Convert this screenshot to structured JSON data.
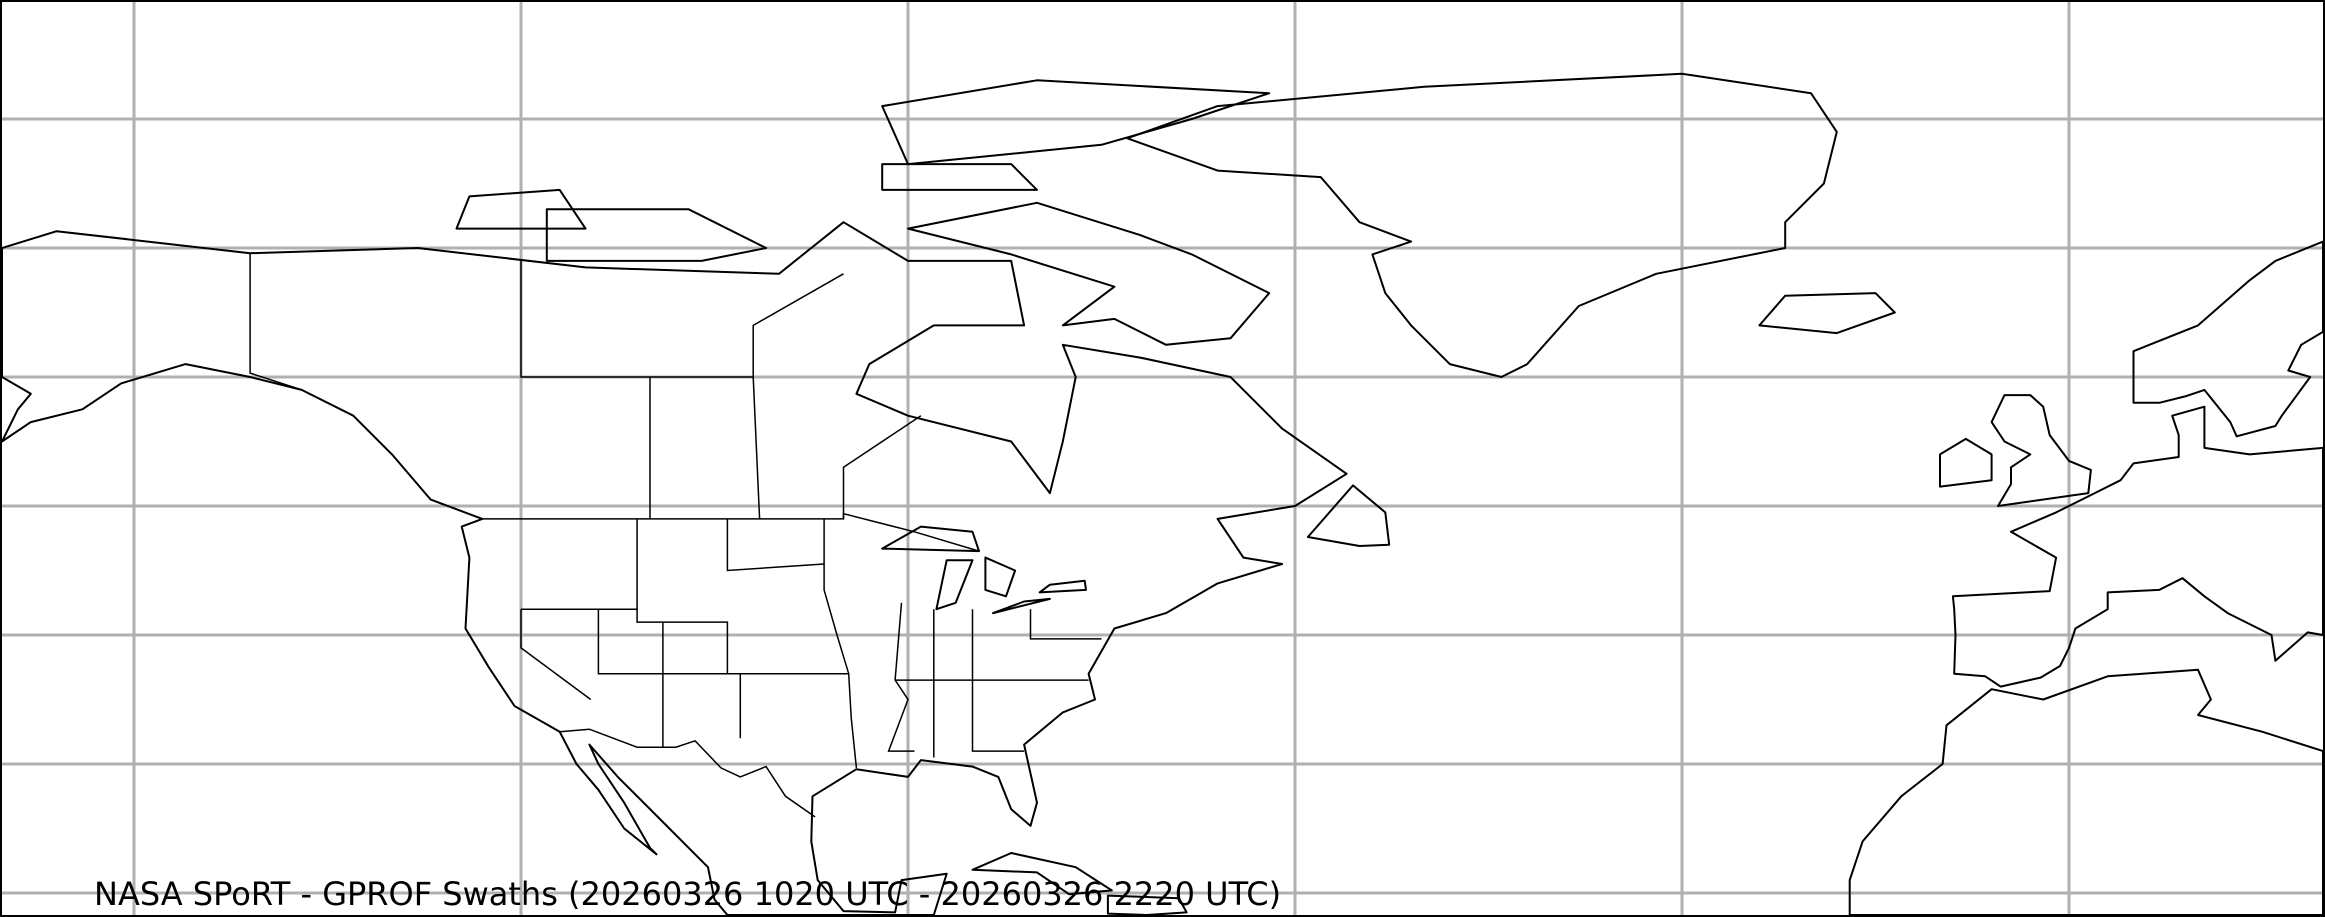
{
  "map": {
    "title": "NASA SPoRT - GPROF Swaths (20260326 1020 UTC - 20260326 2220 UTC)",
    "projection": "equirectangular",
    "gridlines": {
      "longitude_step_deg": 30,
      "latitude_step_deg": 10,
      "color": "#b0b0b0"
    },
    "coastline_color": "#000000",
    "background": "#ffffff"
  }
}
